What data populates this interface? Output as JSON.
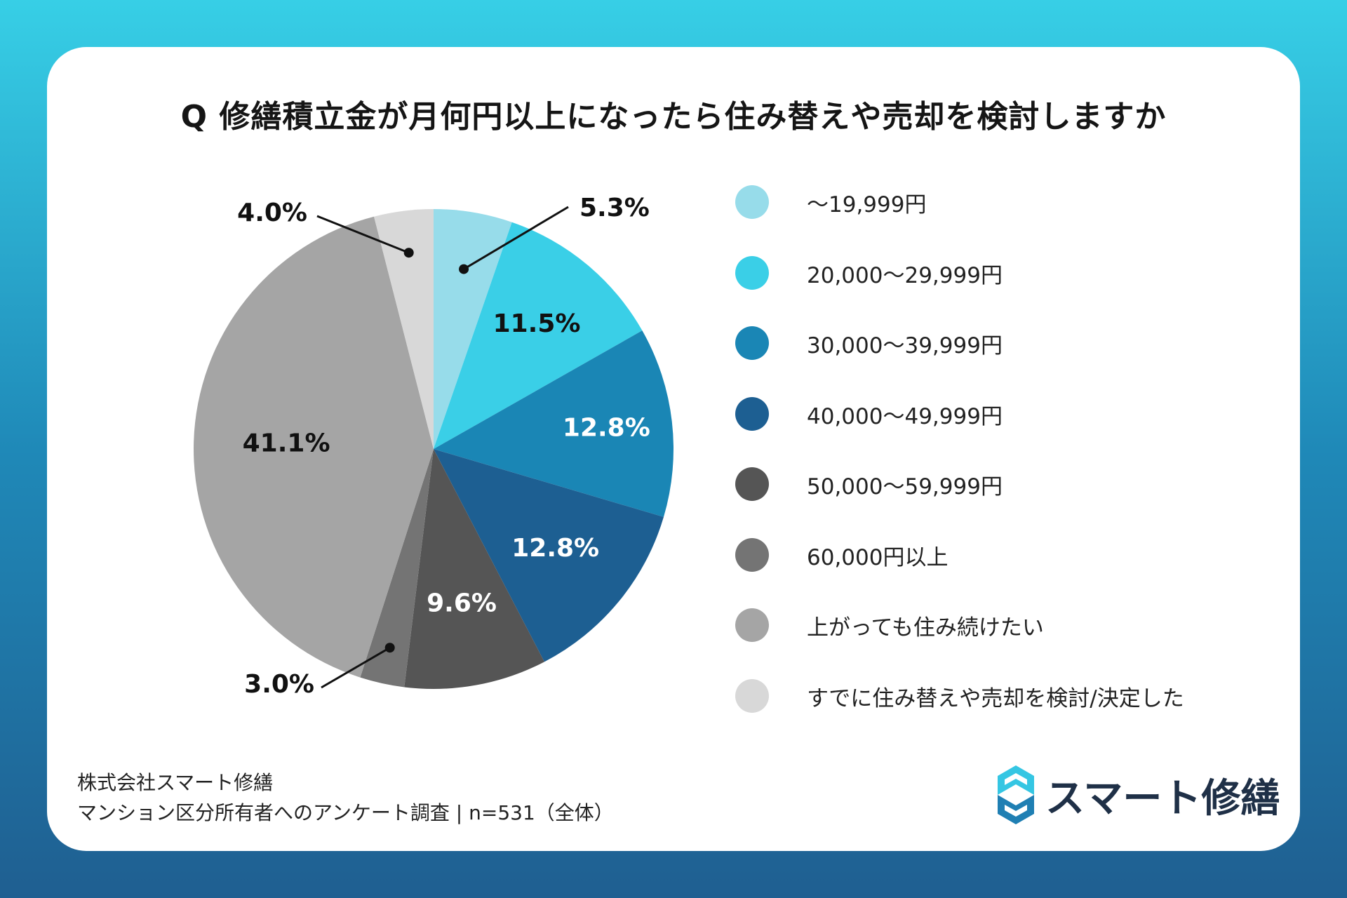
{
  "chart_data": {
    "type": "pie",
    "title": "Q 修繕積立金が月何円以上になったら住み替えや売却を検討しますか",
    "categories": [
      "〜19,999円",
      "20,000〜29,999円",
      "30,000〜39,999円",
      "40,000〜49,999円",
      "50,000〜59,999円",
      "60,000円以上",
      "上がっても住み続けたい",
      "すでに住み替えや売却を検討/決定した"
    ],
    "values": [
      5.3,
      11.5,
      12.8,
      12.8,
      9.6,
      3.0,
      41.1,
      4.0
    ],
    "labels": [
      "5.3%",
      "11.5%",
      "12.8%",
      "12.8%",
      "9.6%",
      "3.0%",
      "41.1%",
      "4.0%"
    ],
    "colors": [
      "#97dcea",
      "#3acfe7",
      "#1a86b5",
      "#1d5f92",
      "#555555",
      "#747474",
      "#a5a5a5",
      "#d8d8d8"
    ],
    "label_colors": [
      "#111111",
      "#111111",
      "#ffffff",
      "#ffffff",
      "#ffffff",
      "#111111",
      "#111111",
      "#111111"
    ],
    "leader_labels": [
      0,
      5,
      7
    ],
    "legend_position": "right",
    "start_angle_deg": 0,
    "direction": "clockwise"
  },
  "legend": {
    "items": [
      "〜19,999円",
      "20,000〜29,999円",
      "30,000〜39,999円",
      "40,000〜49,999円",
      "50,000〜59,999円",
      "60,000円以上",
      "上がっても住み続けたい",
      "すでに住み替えや売却を検討/決定した"
    ]
  },
  "footer": {
    "company": "株式会社スマート修繕",
    "survey": "マンション区分所有者へのアンケート調査 | n=531（全体）"
  },
  "brand": {
    "name": "スマート修繕",
    "logo_icon": "s-hexagon-logo-icon",
    "colors": {
      "logo_light": "#35c6e3",
      "logo_dark": "#1f7fb3",
      "text": "#1f3047"
    }
  }
}
